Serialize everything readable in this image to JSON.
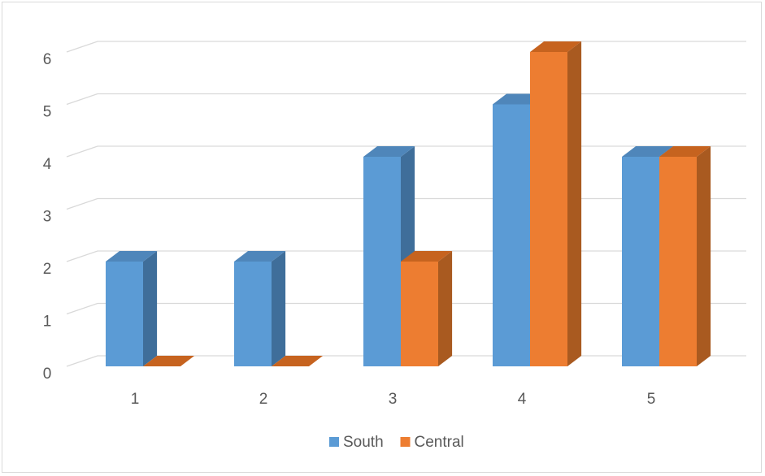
{
  "chart_data": {
    "type": "bar",
    "style": "3d-clustered-column",
    "categories": [
      "1",
      "2",
      "3",
      "4",
      "5"
    ],
    "series": [
      {
        "name": "South",
        "values": [
          2,
          2,
          4,
          5,
          4
        ],
        "color": "#5b9bd5",
        "side_color": "#3f6e9a",
        "top_color": "#4f86ba"
      },
      {
        "name": "Central",
        "values": [
          0,
          0,
          2,
          6,
          4
        ],
        "color": "#ed7d31",
        "side_color": "#a95a20",
        "top_color": "#c6631f"
      }
    ],
    "y_ticks": [
      "0",
      "1",
      "2",
      "3",
      "4",
      "5",
      "6"
    ],
    "ylim": [
      0,
      6
    ],
    "grid": true,
    "legend_position": "bottom",
    "title": "",
    "xlabel": "",
    "ylabel": ""
  }
}
